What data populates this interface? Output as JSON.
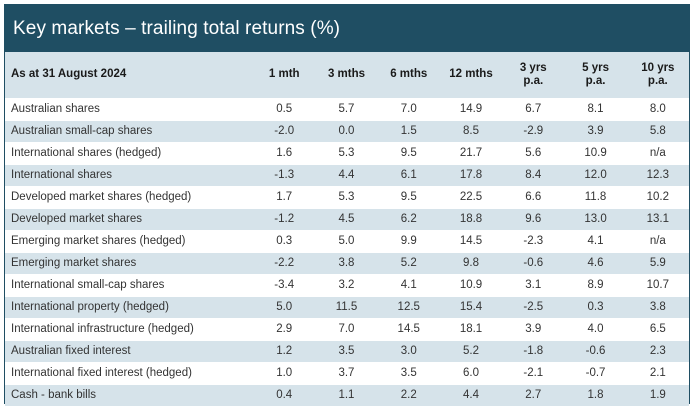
{
  "title": "Key markets – trailing total returns (%)",
  "header": {
    "as_at": "As at 31 August 2024",
    "columns": [
      "1 mth",
      "3 mths",
      "6 mths",
      "12 mths",
      "3 yrs\np.a.",
      "5 yrs\np.a.",
      "10 yrs\np.a."
    ]
  },
  "rows": [
    {
      "name": "Australian shares",
      "values": [
        "0.5",
        "5.7",
        "7.0",
        "14.9",
        "6.7",
        "8.1",
        "8.0"
      ]
    },
    {
      "name": "Australian small-cap shares",
      "values": [
        "-2.0",
        "0.0",
        "1.5",
        "8.5",
        "-2.9",
        "3.9",
        "5.8"
      ]
    },
    {
      "name": "International shares (hedged)",
      "values": [
        "1.6",
        "5.3",
        "9.5",
        "21.7",
        "5.6",
        "10.9",
        "n/a"
      ]
    },
    {
      "name": "International shares",
      "values": [
        "-1.3",
        "4.4",
        "6.1",
        "17.8",
        "8.4",
        "12.0",
        "12.3"
      ]
    },
    {
      "name": "Developed market shares (hedged)",
      "values": [
        "1.7",
        "5.3",
        "9.5",
        "22.5",
        "6.6",
        "11.8",
        "10.2"
      ]
    },
    {
      "name": "Developed market shares",
      "values": [
        "-1.2",
        "4.5",
        "6.2",
        "18.8",
        "9.6",
        "13.0",
        "13.1"
      ]
    },
    {
      "name": "Emerging market shares (hedged)",
      "values": [
        "0.3",
        "5.0",
        "9.9",
        "14.5",
        "-2.3",
        "4.1",
        "n/a"
      ]
    },
    {
      "name": "Emerging market shares",
      "values": [
        "-2.2",
        "3.8",
        "5.2",
        "9.8",
        "-0.6",
        "4.6",
        "5.9"
      ]
    },
    {
      "name": "International small-cap shares",
      "values": [
        "-3.4",
        "3.2",
        "4.1",
        "10.9",
        "3.1",
        "8.9",
        "10.7"
      ]
    },
    {
      "name": "International property (hedged)",
      "values": [
        "5.0",
        "11.5",
        "12.5",
        "15.4",
        "-2.5",
        "0.3",
        "3.8"
      ]
    },
    {
      "name": "International infrastructure (hedged)",
      "values": [
        "2.9",
        "7.0",
        "14.5",
        "18.1",
        "3.9",
        "4.0",
        "6.5"
      ]
    },
    {
      "name": "Australian fixed interest",
      "values": [
        "1.2",
        "3.5",
        "3.0",
        "5.2",
        "-1.8",
        "-0.6",
        "2.3"
      ]
    },
    {
      "name": "International fixed interest (hedged)",
      "values": [
        "1.0",
        "3.7",
        "3.5",
        "6.0",
        "-2.1",
        "-0.7",
        "2.1"
      ]
    },
    {
      "name": "Cash - bank bills",
      "values": [
        "0.4",
        "1.1",
        "2.2",
        "4.4",
        "2.7",
        "1.8",
        "1.9"
      ]
    }
  ]
}
